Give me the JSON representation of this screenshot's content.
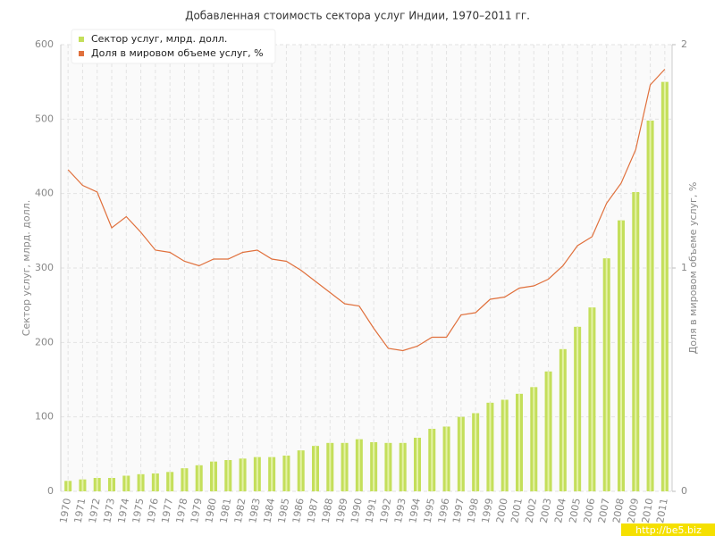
{
  "chart_data": {
    "type": "bar",
    "title": "Добавленная стоимость сектора услуг Индии, 1970–2011 гг.",
    "y_label": "Сектор услуг, млрд. долл.",
    "y2_label": "Доля в мировом объеме услуг, %",
    "watermark": "http://be5.biz",
    "categories": [
      "1970",
      "1971",
      "1972",
      "1973",
      "1974",
      "1975",
      "1976",
      "1977",
      "1978",
      "1979",
      "1980",
      "1981",
      "1982",
      "1983",
      "1984",
      "1985",
      "1986",
      "1987",
      "1988",
      "1989",
      "1990",
      "1991",
      "1992",
      "1993",
      "1994",
      "1995",
      "1996",
      "1997",
      "1998",
      "1999",
      "2000",
      "2001",
      "2002",
      "2003",
      "2004",
      "2005",
      "2006",
      "2007",
      "2008",
      "2009",
      "2010",
      "2011"
    ],
    "series": [
      {
        "name": "Сектор услуг, млрд. долл.",
        "type": "bar",
        "color": "#c4df5b",
        "values": [
          14,
          16,
          18,
          18,
          21,
          23,
          24,
          26,
          31,
          35,
          40,
          42,
          44,
          46,
          46,
          48,
          55,
          61,
          65,
          65,
          70,
          66,
          65,
          65,
          72,
          84,
          87,
          100,
          105,
          119,
          123,
          131,
          140,
          161,
          191,
          221,
          247,
          313,
          364,
          402,
          498,
          550
        ]
      },
      {
        "name": "Доля в мировом объеме услуг, %",
        "type": "line",
        "axis": "y2",
        "color": "#e0703c",
        "values": [
          1.44,
          1.37,
          1.34,
          1.18,
          1.23,
          1.16,
          1.08,
          1.07,
          1.03,
          1.01,
          1.04,
          1.04,
          1.07,
          1.08,
          1.04,
          1.03,
          0.99,
          0.94,
          0.89,
          0.84,
          0.83,
          0.73,
          0.64,
          0.63,
          0.65,
          0.69,
          0.69,
          0.79,
          0.8,
          0.86,
          0.87,
          0.91,
          0.92,
          0.95,
          1.01,
          1.1,
          1.14,
          1.29,
          1.38,
          1.53,
          1.82,
          1.89
        ]
      }
    ],
    "ylim": [
      0,
      600
    ],
    "yticks": [
      0,
      100,
      200,
      300,
      400,
      500,
      600
    ],
    "y2lim": [
      0,
      2
    ],
    "y2ticks": [
      0,
      1,
      2
    ],
    "grid": true,
    "legend": "top-left"
  }
}
